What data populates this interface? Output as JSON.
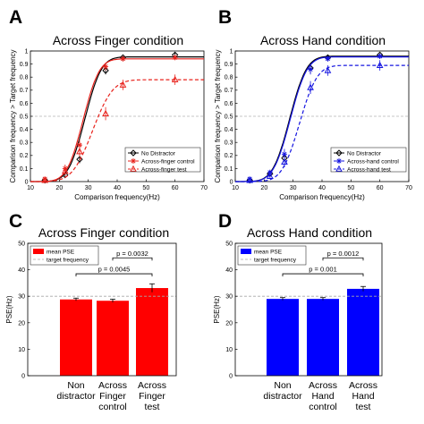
{
  "panel_letters": {
    "a": "A",
    "b": "B",
    "c": "C",
    "d": "D"
  },
  "chart_data": [
    {
      "panel": "A",
      "type": "line",
      "title": "Across Finger condition",
      "xlabel": "Comparison frequency(Hz)",
      "ylabel": "Comparison frequency > Target frequency",
      "xlim": [
        10,
        70
      ],
      "ylim": [
        0,
        1
      ],
      "xticks": [
        10,
        20,
        30,
        40,
        50,
        60,
        70
      ],
      "yticks": [
        0,
        0.1,
        0.2,
        0.3,
        0.4,
        0.5,
        0.6,
        0.7,
        0.8,
        0.9,
        1
      ],
      "xtick_labels": [
        "10",
        "20",
        "30",
        "40",
        "50",
        "60",
        "70"
      ],
      "ytick_labels": [
        "0",
        "0.1",
        "0.2",
        "0.3",
        "0.4",
        "0.5",
        "0.6",
        "0.7",
        "0.8",
        "0.9",
        "1"
      ],
      "reference_line": 0.5,
      "legend_position": "bottom-right",
      "series": [
        {
          "name": "No Distractor",
          "color": "#000000",
          "dash": "solid",
          "marker": "diamond",
          "x": [
            15,
            22,
            27,
            36,
            42,
            60
          ],
          "y": [
            0.01,
            0.05,
            0.17,
            0.85,
            0.95,
            0.97
          ],
          "err": [
            0.01,
            0.02,
            0.03,
            0.03,
            0.01,
            0.02
          ],
          "fit": {
            "mu": 28.8,
            "sigma": 4.5,
            "top": 0.955
          }
        },
        {
          "name": "Across-finger control",
          "color": "#e8211b",
          "dash": "solid",
          "marker": "star",
          "x": [
            15,
            22,
            27,
            36,
            42,
            60
          ],
          "y": [
            0.02,
            0.1,
            0.28,
            0.88,
            0.94,
            0.95
          ],
          "err": [
            0.01,
            0.03,
            0.04,
            0.03,
            0.02,
            0.02
          ],
          "fit": {
            "mu": 28.2,
            "sigma": 4.4,
            "top": 0.94
          }
        },
        {
          "name": "Across-finger test",
          "color": "#e8211b",
          "dash": "dashed",
          "marker": "triangle",
          "x": [
            15,
            22,
            27,
            36,
            42,
            60
          ],
          "y": [
            0.01,
            0.08,
            0.23,
            0.52,
            0.74,
            0.78
          ],
          "err": [
            0.01,
            0.03,
            0.04,
            0.05,
            0.04,
            0.04
          ],
          "fit": {
            "mu": 31.5,
            "sigma": 5.5,
            "top": 0.78
          }
        }
      ]
    },
    {
      "panel": "B",
      "type": "line",
      "title": "Across Hand condition",
      "xlabel": "Comparison frequency(Hz)",
      "ylabel": "Comparison frequency > Target frequency",
      "xlim": [
        10,
        70
      ],
      "ylim": [
        0,
        1
      ],
      "xticks": [
        10,
        20,
        30,
        40,
        50,
        60,
        70
      ],
      "yticks": [
        0,
        0.1,
        0.2,
        0.3,
        0.4,
        0.5,
        0.6,
        0.7,
        0.8,
        0.9,
        1
      ],
      "xtick_labels": [
        "10",
        "20",
        "30",
        "40",
        "50",
        "60",
        "70"
      ],
      "ytick_labels": [
        "0",
        "0.1",
        "0.2",
        "0.3",
        "0.4",
        "0.5",
        "0.6",
        "0.7",
        "0.8",
        "0.9",
        "1"
      ],
      "reference_line": 0.5,
      "legend_position": "bottom-right",
      "series": [
        {
          "name": "No Distractor",
          "color": "#000000",
          "dash": "solid",
          "marker": "diamond",
          "x": [
            15,
            22,
            27,
            36,
            42,
            60
          ],
          "y": [
            0.01,
            0.06,
            0.18,
            0.87,
            0.95,
            0.97
          ],
          "err": [
            0.01,
            0.02,
            0.03,
            0.04,
            0.02,
            0.01
          ],
          "fit": {
            "mu": 28.8,
            "sigma": 4.6,
            "top": 0.96
          }
        },
        {
          "name": "Across-hand control",
          "color": "#1515e0",
          "dash": "solid",
          "marker": "star",
          "x": [
            15,
            22,
            27,
            36,
            42,
            60
          ],
          "y": [
            0.02,
            0.07,
            0.21,
            0.86,
            0.94,
            0.96
          ],
          "err": [
            0.01,
            0.02,
            0.04,
            0.04,
            0.02,
            0.02
          ],
          "fit": {
            "mu": 29.0,
            "sigma": 4.6,
            "top": 0.955
          }
        },
        {
          "name": "Across-hand test",
          "color": "#1515e0",
          "dash": "dashed",
          "marker": "triangle",
          "x": [
            15,
            22,
            27,
            36,
            42,
            60
          ],
          "y": [
            0.01,
            0.04,
            0.15,
            0.72,
            0.85,
            0.89
          ],
          "err": [
            0.01,
            0.02,
            0.04,
            0.05,
            0.04,
            0.04
          ],
          "fit": {
            "mu": 32.2,
            "sigma": 4.8,
            "top": 0.89
          }
        }
      ]
    },
    {
      "panel": "C",
      "type": "bar",
      "title": "Across Finger condition",
      "ylabel": "PSE(Hz)",
      "ylim": [
        0,
        50
      ],
      "yticks": [
        0,
        10,
        20,
        30,
        40,
        50
      ],
      "ytick_labels": [
        "0",
        "10",
        "20",
        "30",
        "40",
        "50"
      ],
      "categories": [
        [
          "Non",
          "distractor"
        ],
        [
          "Across",
          "Finger",
          "control"
        ],
        [
          "Across",
          "Finger",
          "test"
        ]
      ],
      "values": [
        28.8,
        28.3,
        33.1
      ],
      "err": [
        0.5,
        0.6,
        1.6
      ],
      "color": "#ff0000",
      "target_frequency": 30,
      "legend_position": "top-left",
      "legend": {
        "bar": "mean PSE",
        "line": "target frequency"
      },
      "comparisons": [
        {
          "from": 0,
          "to": 2,
          "label": "p = 0.0045"
        },
        {
          "from": 1,
          "to": 2,
          "label": "p = 0.0032"
        }
      ]
    },
    {
      "panel": "D",
      "type": "bar",
      "title": "Across Hand condition",
      "ylabel": "PSE(Hz)",
      "ylim": [
        0,
        50
      ],
      "yticks": [
        0,
        10,
        20,
        30,
        40,
        50
      ],
      "ytick_labels": [
        "0",
        "10",
        "20",
        "30",
        "40",
        "50"
      ],
      "categories": [
        [
          "Non",
          "distractor"
        ],
        [
          "Across",
          "Hand",
          "control"
        ],
        [
          "Across",
          "Hand",
          "test"
        ]
      ],
      "values": [
        29.0,
        29.0,
        32.8
      ],
      "err": [
        0.5,
        0.5,
        0.9
      ],
      "color": "#0000ff",
      "target_frequency": 30,
      "legend_position": "top-left",
      "legend": {
        "bar": "mean PSE",
        "line": "target frequency"
      },
      "comparisons": [
        {
          "from": 0,
          "to": 2,
          "label": "p = 0.001"
        },
        {
          "from": 1,
          "to": 2,
          "label": "p = 0.0012"
        }
      ]
    }
  ]
}
